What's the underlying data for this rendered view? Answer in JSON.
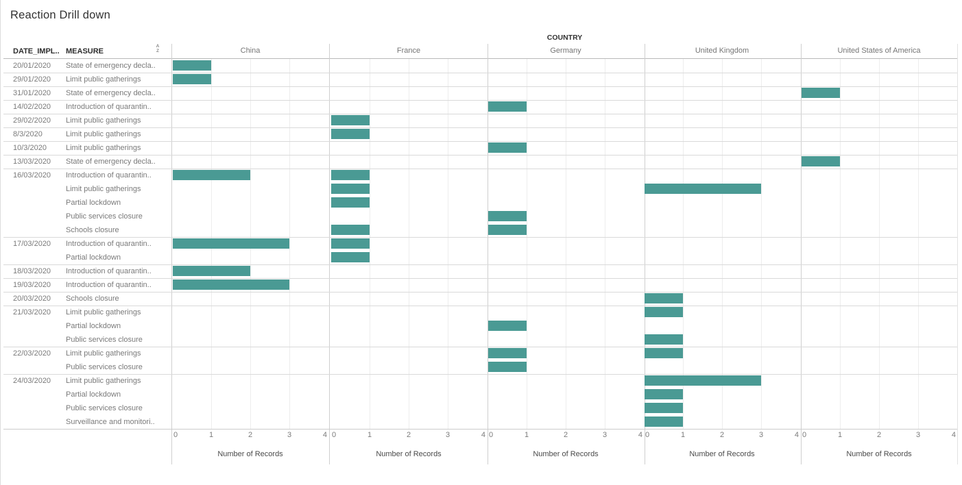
{
  "title": "Reaction Drill down",
  "country_dimension_label": "COUNTRY",
  "table": {
    "date_header": "DATE_IMPL..",
    "measure_header": "MEASURE",
    "sort_icon_letters": [
      "A",
      "Z"
    ]
  },
  "countries": [
    "China",
    "France",
    "Germany",
    "United Kingdom",
    "United States of America"
  ],
  "axis": {
    "tick_labels": [
      "0",
      "1",
      "2",
      "3",
      "4"
    ],
    "title": "Number of Records",
    "min": 0,
    "max": 4
  },
  "colors": {
    "bar": "#4a9a94",
    "grid_light": "#ededed",
    "panel_border": "#cfcfcf",
    "group_line": "#d9d9d9",
    "header_line": "#b9b9b9",
    "text_muted": "#7a7a7a",
    "text_dark": "#2e2e2e"
  },
  "chart_data": {
    "type": "bar",
    "orientation": "horizontal",
    "title": "Reaction Drill down",
    "column_dimension": "COUNTRY",
    "columns": [
      "China",
      "France",
      "Germany",
      "United Kingdom",
      "United States of America"
    ],
    "x_axis": {
      "title": "Number of Records",
      "range": [
        0,
        4
      ],
      "ticks": [
        0,
        1,
        2,
        3,
        4
      ]
    },
    "rows": [
      {
        "date": "20/01/2020",
        "measure": "State of emergency decla..",
        "values": {
          "China": 1
        }
      },
      {
        "date": "29/01/2020",
        "measure": "Limit public gatherings",
        "values": {
          "China": 1
        }
      },
      {
        "date": "31/01/2020",
        "measure": "State of emergency decla..",
        "values": {
          "United States of America": 1
        }
      },
      {
        "date": "14/02/2020",
        "measure": "Introduction of quarantin..",
        "values": {
          "Germany": 1
        }
      },
      {
        "date": "29/02/2020",
        "measure": "Limit public gatherings",
        "values": {
          "France": 1
        }
      },
      {
        "date": "8/3/2020",
        "measure": "Limit public gatherings",
        "values": {
          "France": 1
        }
      },
      {
        "date": "10/3/2020",
        "measure": "Limit public gatherings",
        "values": {
          "Germany": 1
        }
      },
      {
        "date": "13/03/2020",
        "measure": "State of emergency decla..",
        "values": {
          "United States of America": 1
        }
      },
      {
        "date": "16/03/2020",
        "measure": "Introduction of quarantin..",
        "values": {
          "China": 2,
          "France": 1
        }
      },
      {
        "date": "",
        "measure": "Limit public gatherings",
        "values": {
          "France": 1,
          "United Kingdom": 3
        }
      },
      {
        "date": "",
        "measure": "Partial lockdown",
        "values": {
          "France": 1
        }
      },
      {
        "date": "",
        "measure": "Public services closure",
        "values": {
          "Germany": 1
        }
      },
      {
        "date": "",
        "measure": "Schools closure",
        "values": {
          "France": 1,
          "Germany": 1
        }
      },
      {
        "date": "17/03/2020",
        "measure": "Introduction of quarantin..",
        "values": {
          "China": 3,
          "France": 1
        }
      },
      {
        "date": "",
        "measure": "Partial lockdown",
        "values": {
          "France": 1
        }
      },
      {
        "date": "18/03/2020",
        "measure": "Introduction of quarantin..",
        "values": {
          "China": 2
        }
      },
      {
        "date": "19/03/2020",
        "measure": "Introduction of quarantin..",
        "values": {
          "China": 3
        }
      },
      {
        "date": "20/03/2020",
        "measure": "Schools closure",
        "values": {
          "United Kingdom": 1
        }
      },
      {
        "date": "21/03/2020",
        "measure": "Limit public gatherings",
        "values": {
          "United Kingdom": 1
        }
      },
      {
        "date": "",
        "measure": "Partial lockdown",
        "values": {
          "Germany": 1
        }
      },
      {
        "date": "",
        "measure": "Public services closure",
        "values": {
          "United Kingdom": 1
        }
      },
      {
        "date": "22/03/2020",
        "measure": "Limit public gatherings",
        "values": {
          "Germany": 1,
          "United Kingdom": 1
        }
      },
      {
        "date": "",
        "measure": "Public services closure",
        "values": {
          "Germany": 1
        }
      },
      {
        "date": "24/03/2020",
        "measure": "Limit public gatherings",
        "values": {
          "United Kingdom": 3
        }
      },
      {
        "date": "",
        "measure": "Partial lockdown",
        "values": {
          "United Kingdom": 1
        }
      },
      {
        "date": "",
        "measure": "Public services closure",
        "values": {
          "United Kingdom": 1
        }
      },
      {
        "date": "",
        "measure": "Surveillance and monitori..",
        "values": {
          "United Kingdom": 1
        }
      }
    ]
  }
}
